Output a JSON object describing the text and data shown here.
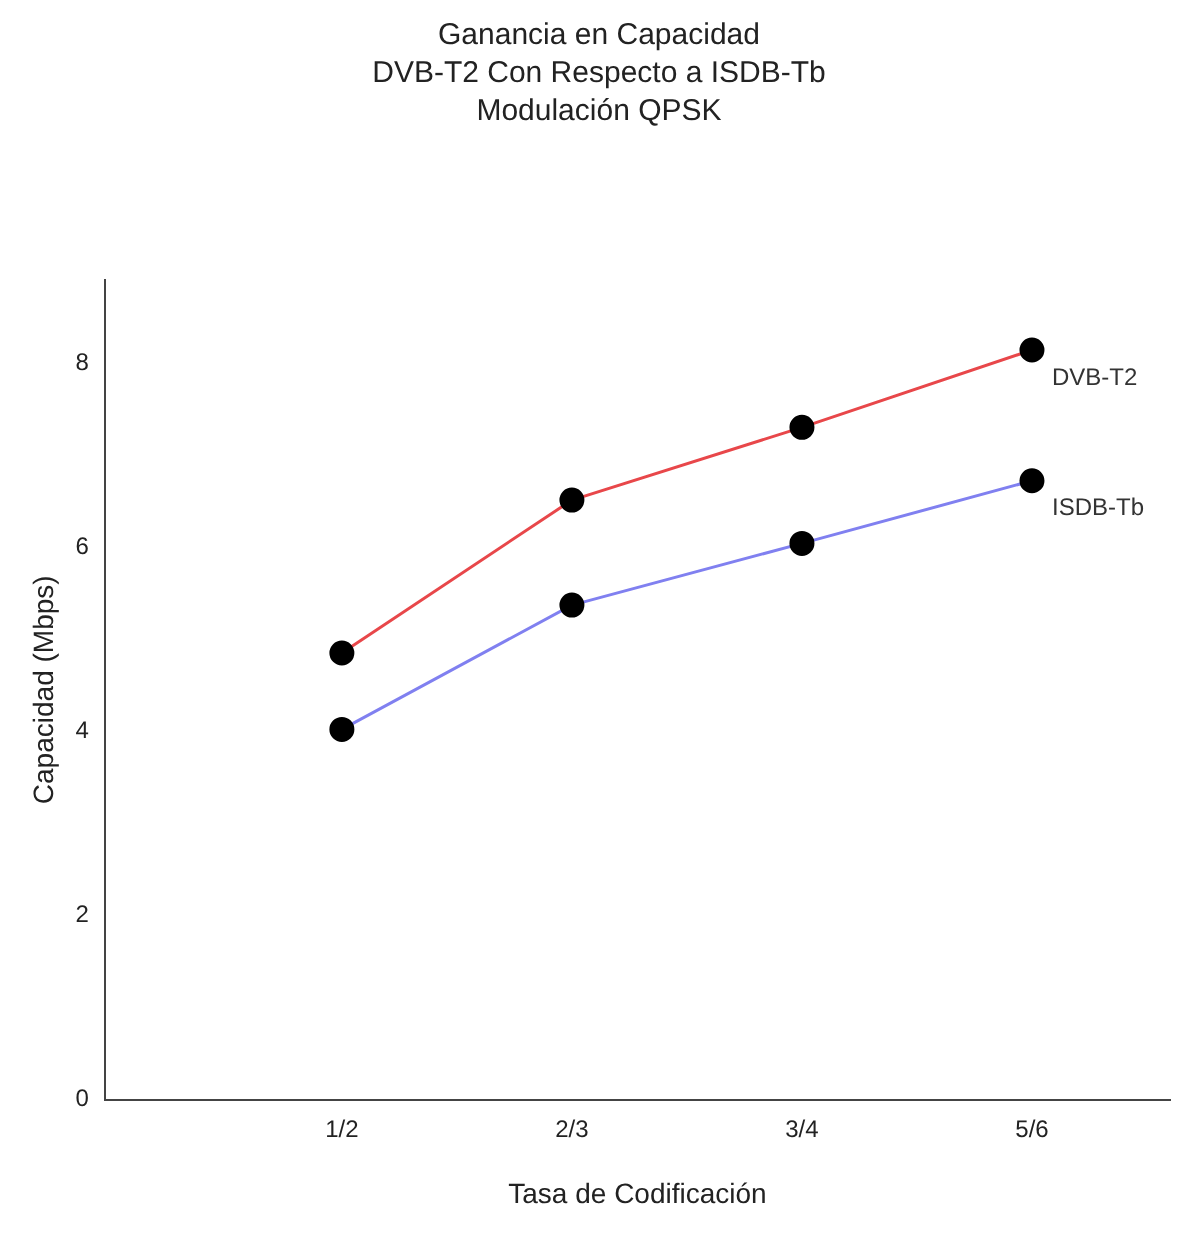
{
  "chart_data": {
    "type": "line",
    "title": "Ganancia en Capacidad\nDVB-T2 Con Respecto a ISDB-Tb\nModulación QPSK",
    "xlabel": "Tasa de Codificación",
    "ylabel": "Capacidad (Mbps)",
    "categories": [
      "1/2",
      "2/3",
      "3/4",
      "5/6"
    ],
    "series": [
      {
        "name": "DVB-T2",
        "color": "#e8474a",
        "values": [
          4.85,
          6.51,
          7.3,
          8.14
        ]
      },
      {
        "name": "ISDB-Tb",
        "color": "#8080f0",
        "values": [
          4.02,
          5.37,
          6.04,
          6.72
        ]
      }
    ],
    "ylim": [
      0,
      8.9
    ],
    "yticks": [
      0,
      2,
      4,
      6,
      8
    ],
    "grid": false,
    "legend": false,
    "marker": "circle"
  }
}
